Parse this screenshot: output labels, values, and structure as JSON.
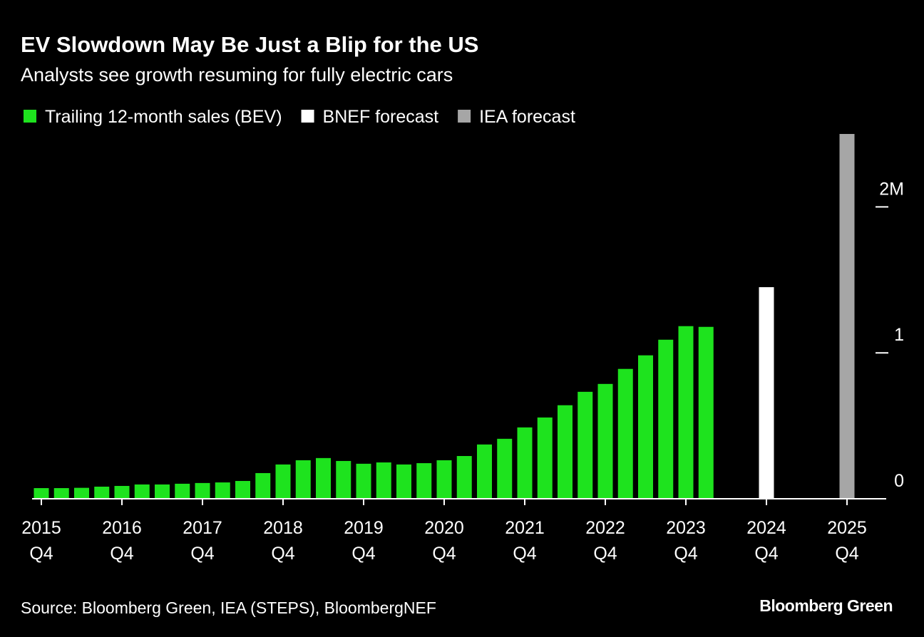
{
  "chart_data": {
    "type": "bar",
    "title": "EV Slowdown May Be Just a Blip for the US",
    "subtitle": "Analysts see growth resuming for fully electric cars",
    "source": "Source: Bloomberg Green, IEA (STEPS), BloombergNEF",
    "logo": "Bloomberg Green",
    "categories": [
      "2015 Q4",
      null,
      null,
      null,
      "2016 Q4",
      null,
      null,
      null,
      "2017 Q4",
      null,
      null,
      null,
      "2018 Q4",
      null,
      null,
      null,
      "2019 Q4",
      null,
      null,
      null,
      "2020 Q4",
      null,
      null,
      null,
      "2021 Q4",
      null,
      null,
      null,
      "2022 Q4",
      null,
      null,
      null,
      "2023 Q4",
      null,
      null,
      null,
      "2024 Q4",
      null,
      null,
      null,
      "2025 Q4"
    ],
    "series": [
      {
        "name": "Trailing 12-month sales (BEV)",
        "color": "#1ee31e",
        "values": [
          73000,
          73000,
          75000,
          83000,
          88000,
          98000,
          98000,
          103000,
          108000,
          112000,
          122000,
          176000,
          235000,
          264000,
          279000,
          259000,
          240000,
          249000,
          235000,
          244000,
          264000,
          293000,
          372000,
          411000,
          489000,
          557000,
          641000,
          733000,
          787000,
          890000,
          983000,
          1090000,
          1183000,
          1178000,
          null,
          null,
          null,
          null,
          null,
          null,
          null
        ]
      },
      {
        "name": "BNEF forecast",
        "color": "#ffffff",
        "values": [
          null,
          null,
          null,
          null,
          null,
          null,
          null,
          null,
          null,
          null,
          null,
          null,
          null,
          null,
          null,
          null,
          null,
          null,
          null,
          null,
          null,
          null,
          null,
          null,
          null,
          null,
          null,
          null,
          null,
          null,
          null,
          null,
          null,
          null,
          null,
          null,
          1450000,
          null,
          null,
          null,
          null
        ]
      },
      {
        "name": "IEA forecast",
        "color": "#a6a6a6",
        "values": [
          null,
          null,
          null,
          null,
          null,
          null,
          null,
          null,
          null,
          null,
          null,
          null,
          null,
          null,
          null,
          null,
          null,
          null,
          null,
          null,
          null,
          null,
          null,
          null,
          null,
          null,
          null,
          null,
          null,
          null,
          null,
          null,
          null,
          null,
          null,
          null,
          null,
          null,
          null,
          null,
          2500000
        ]
      }
    ],
    "ylim": [
      0,
      2500000
    ],
    "yticks": [
      0,
      {
        "value": 1000000,
        "label": "1"
      },
      {
        "value": 2000000,
        "label": "2M"
      }
    ]
  }
}
